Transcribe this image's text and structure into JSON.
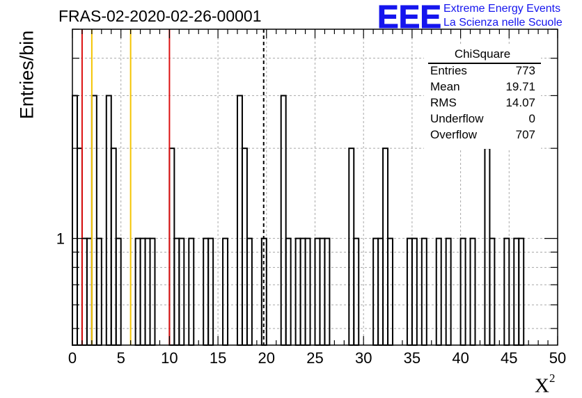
{
  "chart_data": {
    "type": "bar",
    "title": "FRAS-02-2020-02-26-00001",
    "xlabel": "X",
    "xlabel_superscript": "2",
    "ylabel": "Entries/bin",
    "xlim": [
      0,
      50
    ],
    "ylim": [
      0.44,
      5
    ],
    "yscale": "log",
    "grid": true,
    "bin_width": 0.5,
    "x_ticks": [
      "0",
      "5",
      "10",
      "15",
      "20",
      "25",
      "30",
      "35",
      "40",
      "45",
      "50"
    ],
    "y_tick_labels": [
      "1"
    ],
    "bins": [
      {
        "x": 0.0,
        "y": 3
      },
      {
        "x": 0.5,
        "y": 2
      },
      {
        "x": 1.0,
        "y": 1
      },
      {
        "x": 1.5,
        "y": 1
      },
      {
        "x": 2.0,
        "y": 3
      },
      {
        "x": 2.5,
        "y": 1
      },
      {
        "x": 3.5,
        "y": 3
      },
      {
        "x": 4.0,
        "y": 2
      },
      {
        "x": 4.5,
        "y": 1
      },
      {
        "x": 6.5,
        "y": 1
      },
      {
        "x": 7.0,
        "y": 1
      },
      {
        "x": 7.5,
        "y": 1
      },
      {
        "x": 8.0,
        "y": 1
      },
      {
        "x": 10.0,
        "y": 2
      },
      {
        "x": 10.5,
        "y": 1
      },
      {
        "x": 11.0,
        "y": 1
      },
      {
        "x": 12.0,
        "y": 1
      },
      {
        "x": 13.5,
        "y": 1
      },
      {
        "x": 14.0,
        "y": 1
      },
      {
        "x": 15.5,
        "y": 1
      },
      {
        "x": 17.0,
        "y": 3
      },
      {
        "x": 17.5,
        "y": 2
      },
      {
        "x": 18.0,
        "y": 1
      },
      {
        "x": 19.5,
        "y": 1
      },
      {
        "x": 21.5,
        "y": 3
      },
      {
        "x": 22.0,
        "y": 1
      },
      {
        "x": 23.0,
        "y": 1
      },
      {
        "x": 23.5,
        "y": 1
      },
      {
        "x": 24.0,
        "y": 1
      },
      {
        "x": 25.0,
        "y": 1
      },
      {
        "x": 25.5,
        "y": 1
      },
      {
        "x": 26.0,
        "y": 1
      },
      {
        "x": 28.5,
        "y": 2
      },
      {
        "x": 29.0,
        "y": 1
      },
      {
        "x": 31.0,
        "y": 1
      },
      {
        "x": 31.5,
        "y": 1
      },
      {
        "x": 32.0,
        "y": 2
      },
      {
        "x": 32.5,
        "y": 1
      },
      {
        "x": 34.5,
        "y": 1
      },
      {
        "x": 35.0,
        "y": 1
      },
      {
        "x": 36.0,
        "y": 1
      },
      {
        "x": 37.5,
        "y": 1
      },
      {
        "x": 38.5,
        "y": 1
      },
      {
        "x": 40.0,
        "y": 1
      },
      {
        "x": 41.0,
        "y": 1
      },
      {
        "x": 42.5,
        "y": 2
      },
      {
        "x": 43.0,
        "y": 1
      },
      {
        "x": 44.5,
        "y": 1
      },
      {
        "x": 45.5,
        "y": 1
      },
      {
        "x": 46.0,
        "y": 1
      }
    ],
    "reference_lines": [
      {
        "x": 1,
        "color": "#dd1111",
        "style": "solid"
      },
      {
        "x": 2,
        "color": "#f5c400",
        "style": "solid"
      },
      {
        "x": 6,
        "color": "#f5c400",
        "style": "solid"
      },
      {
        "x": 10,
        "color": "#dd1111",
        "style": "solid"
      },
      {
        "x": 19.71,
        "color": "#000000",
        "style": "dashed"
      }
    ]
  },
  "stats_box": {
    "title": "ChiSquare",
    "rows": [
      {
        "label": "Entries",
        "value": "773"
      },
      {
        "label": "Mean",
        "value": "19.71"
      },
      {
        "label": "RMS",
        "value": "14.07"
      },
      {
        "label": "Underflow",
        "value": "0"
      },
      {
        "label": "Overflow",
        "value": "707"
      }
    ]
  },
  "logo": {
    "text": "EEE",
    "line1": "Extreme Energy Events",
    "line2": "La Scienza nelle Scuole",
    "color": "#1515ee"
  }
}
